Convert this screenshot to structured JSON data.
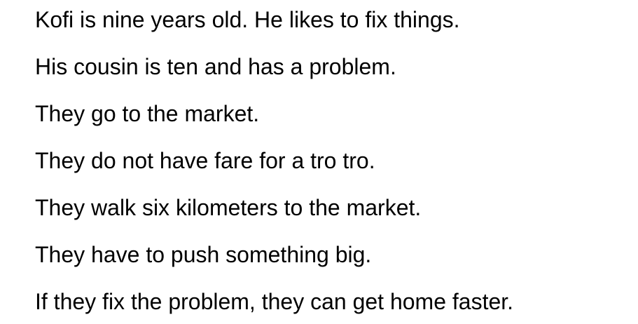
{
  "lines": [
    "Kofi is nine years old. He likes to fix things.",
    "His cousin is ten and has a problem.",
    "They go to the market.",
    "They do not have fare for a tro tro.",
    "They walk six kilometers to the market.",
    "They have to push something big.",
    "If they fix the problem, they can get home faster."
  ],
  "colors": {
    "text": "#000000",
    "background": "#ffffff"
  }
}
